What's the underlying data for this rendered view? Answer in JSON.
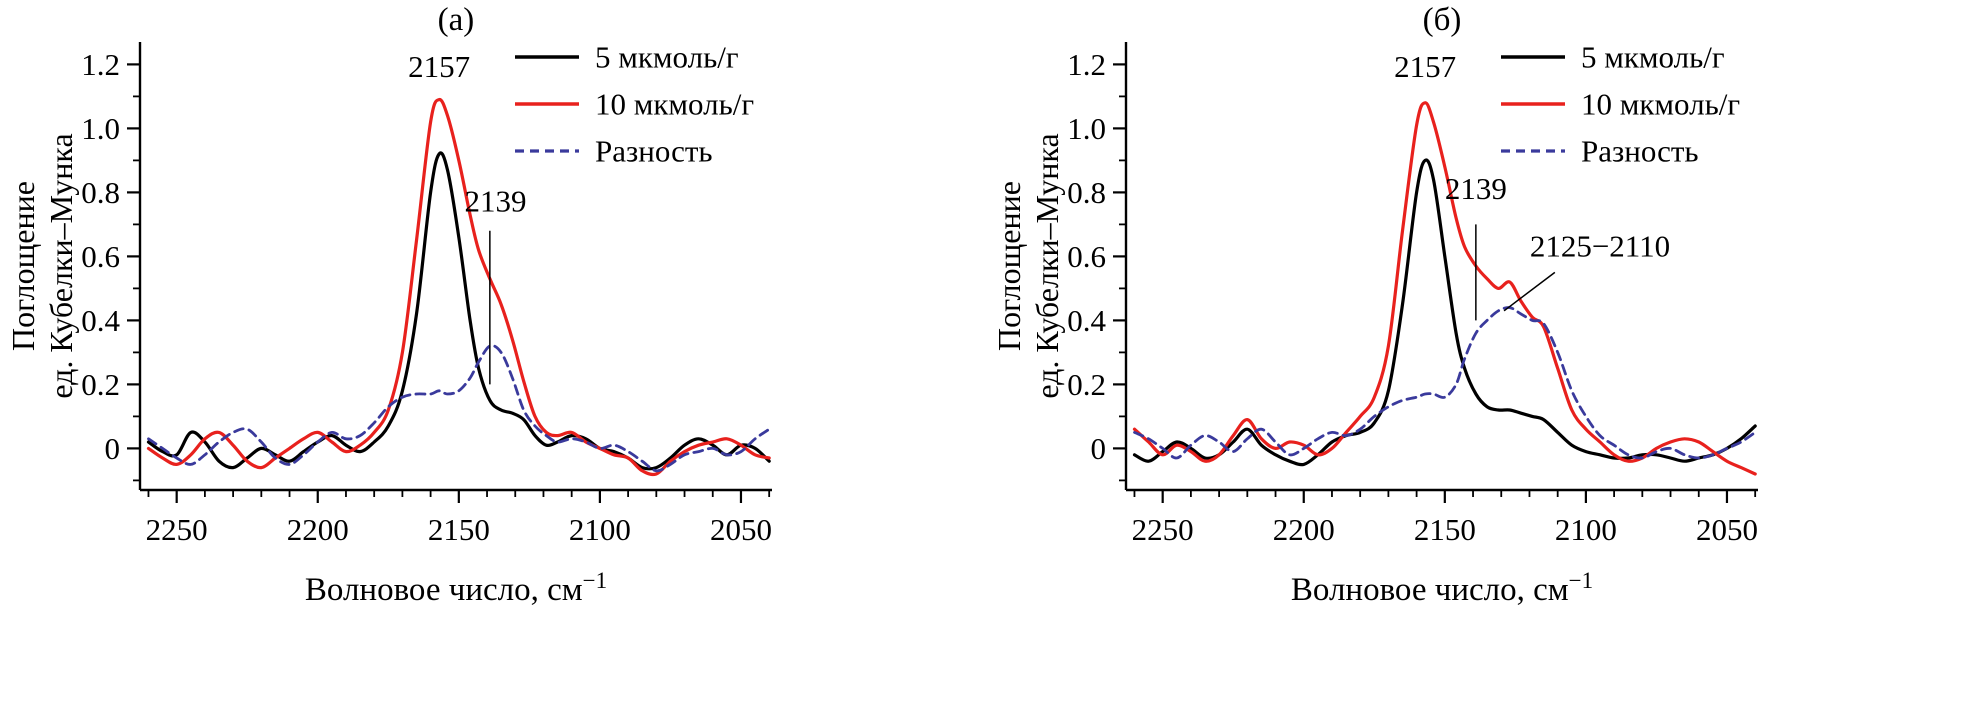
{
  "figure": {
    "background": "#ffffff",
    "axis_color": "#000000",
    "colors": {
      "series_5umol": "#000000",
      "series_10umol": "#e8211d",
      "difference": "#3a3a9c"
    }
  },
  "chart_data": [
    {
      "type": "line",
      "title": "(а)",
      "xlabel": "Волновое число, см",
      "xlabel_sup": "−1",
      "ylabel_lines": [
        "Поглощение",
        "ед. Кубелки–Мунка"
      ],
      "xlim": [
        2263,
        2039
      ],
      "ylim": [
        -0.13,
        1.27
      ],
      "x_ticks": [
        2250,
        2200,
        2150,
        2100,
        2050
      ],
      "x_minor_step": 10,
      "y_ticks": [
        "0",
        "0.2",
        "0.4",
        "0.6",
        "0.8",
        "1.0",
        "1.2"
      ],
      "y_tick_values": [
        0,
        0.2,
        0.4,
        0.6,
        0.8,
        1.0,
        1.2
      ],
      "y_minor_step": 0.1,
      "legend_position": "top-right",
      "x": [
        2260,
        2255,
        2250,
        2245,
        2240,
        2235,
        2230,
        2225,
        2220,
        2215,
        2210,
        2205,
        2200,
        2195,
        2190,
        2185,
        2180,
        2175,
        2170,
        2165,
        2160,
        2157,
        2154,
        2150,
        2146,
        2143,
        2139,
        2135,
        2131,
        2127,
        2123,
        2119,
        2115,
        2110,
        2105,
        2100,
        2095,
        2090,
        2085,
        2080,
        2075,
        2070,
        2065,
        2060,
        2055,
        2050,
        2045,
        2040
      ],
      "series": [
        {
          "name": "5 мкмоль/г",
          "color": "#000000",
          "width": 3.2,
          "dash": "",
          "values": [
            0.02,
            -0.01,
            -0.02,
            0.05,
            0.02,
            -0.04,
            -0.06,
            -0.03,
            0.0,
            -0.02,
            -0.04,
            -0.01,
            0.02,
            0.04,
            0.01,
            -0.01,
            0.02,
            0.07,
            0.18,
            0.42,
            0.8,
            0.92,
            0.87,
            0.66,
            0.4,
            0.25,
            0.15,
            0.12,
            0.11,
            0.09,
            0.04,
            0.01,
            0.02,
            0.04,
            0.03,
            0.0,
            -0.01,
            -0.03,
            -0.06,
            -0.06,
            -0.03,
            0.01,
            0.03,
            0.01,
            -0.02,
            0.01,
            0.0,
            -0.04
          ]
        },
        {
          "name": "10 мкмоль/г",
          "color": "#e8211d",
          "width": 3.2,
          "dash": "",
          "values": [
            0.0,
            -0.03,
            -0.05,
            -0.02,
            0.03,
            0.05,
            0.01,
            -0.04,
            -0.06,
            -0.03,
            0.0,
            0.03,
            0.05,
            0.02,
            -0.01,
            0.01,
            0.05,
            0.12,
            0.3,
            0.65,
            1.02,
            1.09,
            1.04,
            0.9,
            0.73,
            0.62,
            0.53,
            0.45,
            0.34,
            0.21,
            0.1,
            0.05,
            0.04,
            0.05,
            0.02,
            0.0,
            -0.02,
            -0.03,
            -0.07,
            -0.08,
            -0.04,
            -0.01,
            0.01,
            0.02,
            0.03,
            0.01,
            -0.02,
            -0.03
          ]
        },
        {
          "name": "Разность",
          "color": "#3a3a9c",
          "width": 2.8,
          "dash": "9 6",
          "values": [
            0.03,
            0.0,
            -0.03,
            -0.05,
            -0.02,
            0.02,
            0.05,
            0.06,
            0.02,
            -0.03,
            -0.05,
            -0.02,
            0.02,
            0.05,
            0.03,
            0.04,
            0.08,
            0.13,
            0.16,
            0.17,
            0.17,
            0.18,
            0.17,
            0.18,
            0.22,
            0.27,
            0.32,
            0.3,
            0.22,
            0.12,
            0.07,
            0.04,
            0.02,
            0.03,
            0.02,
            0.0,
            0.01,
            -0.01,
            -0.04,
            -0.07,
            -0.05,
            -0.02,
            -0.01,
            0.0,
            -0.02,
            -0.01,
            0.03,
            0.06
          ]
        }
      ],
      "annotations": [
        {
          "text": "2157",
          "x": 2157,
          "y": 1.16
        },
        {
          "text": "2139",
          "x": 2137,
          "y": 0.74,
          "line": {
            "x1": 2139,
            "y1": 0.68,
            "x2": 2139,
            "y2": 0.2
          }
        }
      ]
    },
    {
      "type": "line",
      "title": "(б)",
      "xlabel": "Волновое число, см",
      "xlabel_sup": "−1",
      "ylabel_lines": [
        "Поглощение",
        "ед. Кубелки–Мунка"
      ],
      "xlim": [
        2263,
        2039
      ],
      "ylim": [
        -0.13,
        1.27
      ],
      "x_ticks": [
        2250,
        2200,
        2150,
        2100,
        2050
      ],
      "x_minor_step": 10,
      "y_ticks": [
        "0",
        "0.2",
        "0.4",
        "0.6",
        "0.8",
        "1.0",
        "1.2"
      ],
      "y_tick_values": [
        0,
        0.2,
        0.4,
        0.6,
        0.8,
        1.0,
        1.2
      ],
      "y_minor_step": 0.1,
      "legend_position": "top-right",
      "x": [
        2260,
        2255,
        2250,
        2245,
        2240,
        2235,
        2230,
        2225,
        2220,
        2215,
        2210,
        2205,
        2200,
        2195,
        2190,
        2185,
        2180,
        2175,
        2170,
        2165,
        2160,
        2157,
        2154,
        2150,
        2146,
        2143,
        2139,
        2135,
        2131,
        2127,
        2123,
        2119,
        2115,
        2110,
        2105,
        2100,
        2095,
        2090,
        2085,
        2080,
        2075,
        2070,
        2065,
        2060,
        2055,
        2050,
        2045,
        2040
      ],
      "series": [
        {
          "name": "5 мкмоль/г",
          "color": "#000000",
          "width": 3.2,
          "dash": "",
          "values": [
            -0.02,
            -0.04,
            -0.01,
            0.02,
            0.0,
            -0.03,
            -0.02,
            0.02,
            0.06,
            0.01,
            -0.02,
            -0.04,
            -0.05,
            -0.02,
            0.02,
            0.04,
            0.05,
            0.08,
            0.18,
            0.45,
            0.8,
            0.9,
            0.84,
            0.6,
            0.36,
            0.25,
            0.17,
            0.13,
            0.12,
            0.12,
            0.11,
            0.1,
            0.09,
            0.05,
            0.01,
            -0.01,
            -0.02,
            -0.03,
            -0.03,
            -0.02,
            -0.02,
            -0.03,
            -0.04,
            -0.03,
            -0.02,
            0.0,
            0.03,
            0.07
          ]
        },
        {
          "name": "10 мкмоль/г",
          "color": "#e8211d",
          "width": 3.2,
          "dash": "",
          "values": [
            0.06,
            0.02,
            -0.02,
            0.01,
            -0.01,
            -0.04,
            -0.02,
            0.04,
            0.09,
            0.03,
            0.0,
            0.02,
            0.01,
            -0.02,
            0.0,
            0.05,
            0.1,
            0.16,
            0.32,
            0.68,
            1.01,
            1.08,
            1.02,
            0.88,
            0.72,
            0.63,
            0.57,
            0.53,
            0.5,
            0.52,
            0.46,
            0.41,
            0.38,
            0.25,
            0.12,
            0.06,
            0.02,
            -0.02,
            -0.04,
            -0.03,
            0.0,
            0.02,
            0.03,
            0.02,
            -0.01,
            -0.04,
            -0.06,
            -0.08
          ]
        },
        {
          "name": "Разность",
          "color": "#3a3a9c",
          "width": 2.8,
          "dash": "9 6",
          "values": [
            0.05,
            0.03,
            0.0,
            -0.03,
            0.01,
            0.04,
            0.02,
            -0.01,
            0.03,
            0.06,
            0.02,
            -0.02,
            0.0,
            0.03,
            0.05,
            0.04,
            0.06,
            0.1,
            0.13,
            0.15,
            0.16,
            0.17,
            0.17,
            0.16,
            0.2,
            0.28,
            0.36,
            0.4,
            0.43,
            0.44,
            0.42,
            0.4,
            0.39,
            0.3,
            0.18,
            0.1,
            0.04,
            0.01,
            -0.02,
            -0.03,
            -0.01,
            0.0,
            -0.02,
            -0.03,
            -0.02,
            0.0,
            0.02,
            0.05
          ]
        }
      ],
      "annotations": [
        {
          "text": "2157",
          "x": 2157,
          "y": 1.16
        },
        {
          "text": "2139",
          "x": 2139,
          "y": 0.78,
          "line": {
            "x1": 2139,
            "y1": 0.7,
            "x2": 2139,
            "y2": 0.4
          }
        },
        {
          "text": "2125−2110",
          "x": 2095,
          "y": 0.6,
          "line": {
            "x1": 2111,
            "y1": 0.55,
            "x2": 2129,
            "y2": 0.43
          }
        }
      ]
    }
  ]
}
